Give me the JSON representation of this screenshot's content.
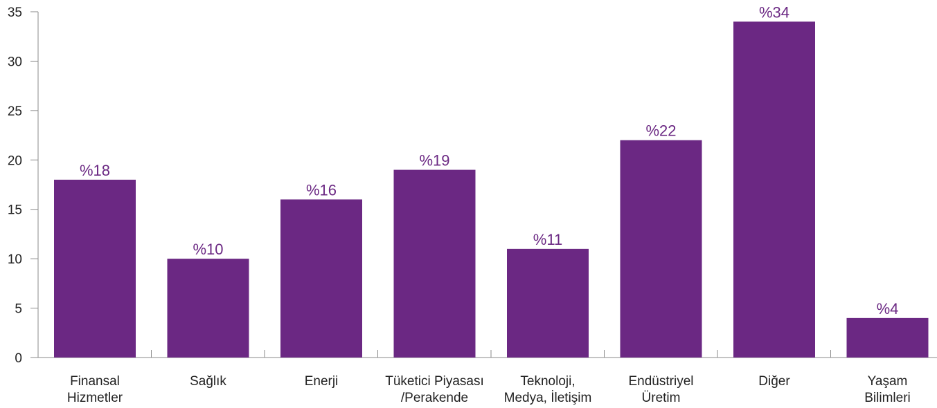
{
  "chart_data": {
    "type": "bar",
    "title": "",
    "xlabel": "",
    "ylabel": "",
    "ylim": [
      0,
      35
    ],
    "yticks": [
      0,
      5,
      10,
      15,
      20,
      25,
      30,
      35
    ],
    "grid": false,
    "bar_color": "#6b2883",
    "label_color": "#6b2883",
    "categories": [
      [
        "Finansal",
        "Hizmetler"
      ],
      [
        "Sağlık"
      ],
      [
        "Enerji"
      ],
      [
        "Tüketici Piyasası",
        "/Perakende"
      ],
      [
        "Teknoloji,",
        "Medya, İletişim"
      ],
      [
        "Endüstriyel",
        "Üretim"
      ],
      [
        "Diğer"
      ],
      [
        "Yaşam",
        "Bilimleri"
      ]
    ],
    "values": [
      18,
      10,
      16,
      19,
      11,
      22,
      34,
      4
    ],
    "data_labels": [
      "%18",
      "%10",
      "%16",
      "%19",
      "%11",
      "%22",
      "%34",
      "%4"
    ]
  }
}
